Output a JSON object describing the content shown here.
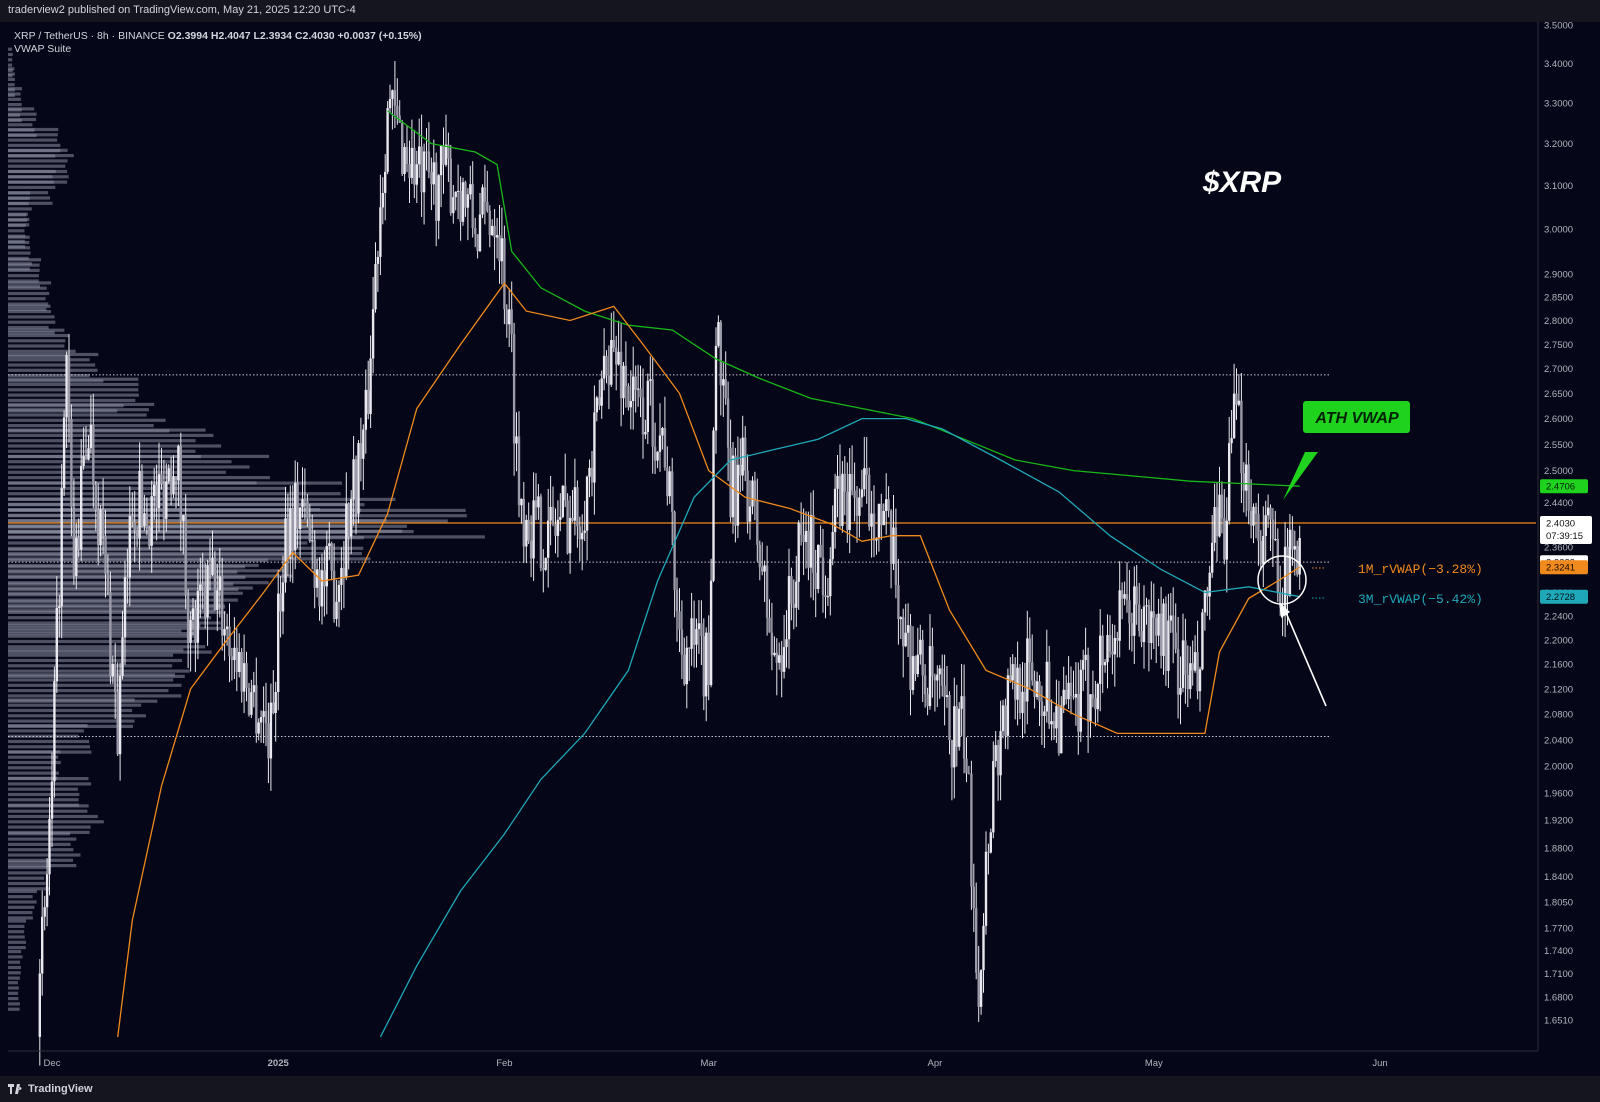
{
  "header": {
    "published": "traderview2 published on TradingView.com, May 21, 2025 12:20 UTC-4"
  },
  "legend": {
    "symbol": "XRP / TetherUS · 8h · BINANCE",
    "ohlc": "O2.3994  H2.4047  L2.3934  C2.4030  +0.0037 (+0.15%)",
    "indicator": "VWAP Suite"
  },
  "footer": {
    "brand": "TradingView"
  },
  "colors": {
    "background": "#050617",
    "candle": "#e8e8ee",
    "ath_vwap": "#18b818",
    "rvwap_1m": "#f08a1c",
    "rvwap_3m": "#1fa8b8",
    "poc_line": "#f08a1c",
    "ath_badge": "#1ed21e"
  },
  "chart_data": {
    "type": "line",
    "title": "$XRP",
    "y_scale": "log",
    "ylim": [
      1.64,
      3.51
    ],
    "y_ticks": [
      "3.5000",
      "3.4000",
      "3.3000",
      "3.2000",
      "3.1000",
      "3.0000",
      "2.9000",
      "2.8500",
      "2.8000",
      "2.7500",
      "2.7000",
      "2.6500",
      "2.6000",
      "2.5500",
      "2.5000",
      "2.4400",
      "2.4000",
      "2.3600",
      "2.3200",
      "2.2800",
      "2.2400",
      "2.2000",
      "2.1600",
      "2.1200",
      "2.0800",
      "2.0400",
      "2.0000",
      "1.9600",
      "1.9200",
      "1.8800",
      "1.8400",
      "1.8050",
      "1.7700",
      "1.7400",
      "1.7100",
      "1.6800",
      "1.6510"
    ],
    "x_ticks": [
      {
        "label": "Dec",
        "date": "2024-12-01"
      },
      {
        "label": "2025",
        "date": "2025-01-01"
      },
      {
        "label": "Feb",
        "date": "2025-02-01"
      },
      {
        "label": "Mar",
        "date": "2025-03-01"
      },
      {
        "label": "Apr",
        "date": "2025-04-01"
      },
      {
        "label": "May",
        "date": "2025-05-01"
      },
      {
        "label": "Jun",
        "date": "2025-06-01"
      }
    ],
    "xlim": [
      "2024-11-30",
      "2025-06-18"
    ],
    "price_path": [
      [
        "2024-11-29",
        1.63
      ],
      [
        "2024-12-01",
        1.95
      ],
      [
        "2024-12-03",
        2.68
      ],
      [
        "2024-12-04",
        2.3
      ],
      [
        "2024-12-06",
        2.6
      ],
      [
        "2024-12-08",
        2.35
      ],
      [
        "2024-12-10",
        2.05
      ],
      [
        "2024-12-12",
        2.45
      ],
      [
        "2024-12-14",
        2.42
      ],
      [
        "2024-12-16",
        2.46
      ],
      [
        "2024-12-18",
        2.55
      ],
      [
        "2024-12-20",
        2.2
      ],
      [
        "2024-12-23",
        2.3
      ],
      [
        "2024-12-26",
        2.18
      ],
      [
        "2024-12-29",
        2.1
      ],
      [
        "2024-12-31",
        2.05
      ],
      [
        "2025-01-02",
        2.4
      ],
      [
        "2025-01-04",
        2.44
      ],
      [
        "2025-01-07",
        2.3
      ],
      [
        "2025-01-09",
        2.3
      ],
      [
        "2025-01-11",
        2.45
      ],
      [
        "2025-01-13",
        2.58
      ],
      [
        "2025-01-15",
        3.08
      ],
      [
        "2025-01-16",
        3.3
      ],
      [
        "2025-01-18",
        3.2
      ],
      [
        "2025-01-21",
        3.1
      ],
      [
        "2025-01-24",
        3.12
      ],
      [
        "2025-01-26",
        3.1
      ],
      [
        "2025-01-28",
        3.0
      ],
      [
        "2025-01-31",
        3.05
      ],
      [
        "2025-02-02",
        2.72
      ],
      [
        "2025-02-03",
        2.45
      ],
      [
        "2025-02-05",
        2.4
      ],
      [
        "2025-02-07",
        2.38
      ],
      [
        "2025-02-09",
        2.42
      ],
      [
        "2025-02-11",
        2.42
      ],
      [
        "2025-02-13",
        2.5
      ],
      [
        "2025-02-15",
        2.75
      ],
      [
        "2025-02-17",
        2.7
      ],
      [
        "2025-02-19",
        2.62
      ],
      [
        "2025-02-21",
        2.62
      ],
      [
        "2025-02-23",
        2.55
      ],
      [
        "2025-02-25",
        2.2
      ],
      [
        "2025-02-27",
        2.18
      ],
      [
        "2025-03-01",
        2.15
      ],
      [
        "2025-03-02",
        2.8
      ],
      [
        "2025-03-04",
        2.45
      ],
      [
        "2025-03-06",
        2.5
      ],
      [
        "2025-03-08",
        2.35
      ],
      [
        "2025-03-10",
        2.15
      ],
      [
        "2025-03-12",
        2.25
      ],
      [
        "2025-03-14",
        2.38
      ],
      [
        "2025-03-17",
        2.32
      ],
      [
        "2025-03-19",
        2.45
      ],
      [
        "2025-03-21",
        2.45
      ],
      [
        "2025-03-24",
        2.44
      ],
      [
        "2025-03-26",
        2.35
      ],
      [
        "2025-03-28",
        2.2
      ],
      [
        "2025-03-30",
        2.15
      ],
      [
        "2025-04-01",
        2.12
      ],
      [
        "2025-04-03",
        2.05
      ],
      [
        "2025-04-05",
        2.05
      ],
      [
        "2025-04-07",
        1.7
      ],
      [
        "2025-04-09",
        2.0
      ],
      [
        "2025-04-11",
        2.1
      ],
      [
        "2025-04-13",
        2.15
      ],
      [
        "2025-04-16",
        2.12
      ],
      [
        "2025-04-18",
        2.08
      ],
      [
        "2025-04-20",
        2.08
      ],
      [
        "2025-04-22",
        2.12
      ],
      [
        "2025-04-25",
        2.2
      ],
      [
        "2025-04-28",
        2.25
      ],
      [
        "2025-04-30",
        2.22
      ],
      [
        "2025-05-02",
        2.22
      ],
      [
        "2025-05-05",
        2.15
      ],
      [
        "2025-05-07",
        2.12
      ],
      [
        "2025-05-09",
        2.35
      ],
      [
        "2025-05-11",
        2.42
      ],
      [
        "2025-05-12",
        2.6
      ],
      [
        "2025-05-13",
        2.55
      ],
      [
        "2025-05-15",
        2.4
      ],
      [
        "2025-05-17",
        2.37
      ],
      [
        "2025-05-19",
        2.3
      ],
      [
        "2025-05-20",
        2.34
      ],
      [
        "2025-05-21",
        2.403
      ]
    ],
    "series": [
      {
        "name": "ATH VWAP",
        "last_value": 2.4706,
        "points": [
          [
            "2025-01-16",
            3.28
          ],
          [
            "2025-01-22",
            3.2
          ],
          [
            "2025-01-28",
            3.18
          ],
          [
            "2025-01-31",
            3.15
          ],
          [
            "2025-02-02",
            2.95
          ],
          [
            "2025-02-06",
            2.87
          ],
          [
            "2025-02-12",
            2.82
          ],
          [
            "2025-02-18",
            2.79
          ],
          [
            "2025-02-24",
            2.78
          ],
          [
            "2025-03-02",
            2.72
          ],
          [
            "2025-03-08",
            2.68
          ],
          [
            "2025-03-15",
            2.64
          ],
          [
            "2025-03-22",
            2.62
          ],
          [
            "2025-03-29",
            2.6
          ],
          [
            "2025-04-05",
            2.56
          ],
          [
            "2025-04-12",
            2.52
          ],
          [
            "2025-04-20",
            2.5
          ],
          [
            "2025-04-28",
            2.49
          ],
          [
            "2025-05-06",
            2.48
          ],
          [
            "2025-05-14",
            2.475
          ],
          [
            "2025-05-21",
            2.4706
          ]
        ]
      },
      {
        "name": "1M_rVWAP(−3.28%)",
        "last_value": 2.3241,
        "points": [
          [
            "2024-12-10",
            1.63
          ],
          [
            "2024-12-12",
            1.78
          ],
          [
            "2024-12-16",
            1.97
          ],
          [
            "2024-12-20",
            2.12
          ],
          [
            "2024-12-25",
            2.2
          ],
          [
            "2024-12-30",
            2.28
          ],
          [
            "2025-01-03",
            2.35
          ],
          [
            "2025-01-07",
            2.3
          ],
          [
            "2025-01-12",
            2.31
          ],
          [
            "2025-01-16",
            2.42
          ],
          [
            "2025-01-20",
            2.62
          ],
          [
            "2025-01-26",
            2.75
          ],
          [
            "2025-02-01",
            2.88
          ],
          [
            "2025-02-04",
            2.82
          ],
          [
            "2025-02-10",
            2.8
          ],
          [
            "2025-02-16",
            2.83
          ],
          [
            "2025-02-20",
            2.75
          ],
          [
            "2025-02-25",
            2.65
          ],
          [
            "2025-03-01",
            2.5
          ],
          [
            "2025-03-06",
            2.45
          ],
          [
            "2025-03-12",
            2.43
          ],
          [
            "2025-03-18",
            2.4
          ],
          [
            "2025-03-22",
            2.37
          ],
          [
            "2025-03-26",
            2.38
          ],
          [
            "2025-03-30",
            2.38
          ],
          [
            "2025-04-03",
            2.25
          ],
          [
            "2025-04-08",
            2.15
          ],
          [
            "2025-04-14",
            2.12
          ],
          [
            "2025-04-20",
            2.08
          ],
          [
            "2025-04-26",
            2.05
          ],
          [
            "2025-05-02",
            2.05
          ],
          [
            "2025-05-08",
            2.05
          ],
          [
            "2025-05-10",
            2.18
          ],
          [
            "2025-05-14",
            2.27
          ],
          [
            "2025-05-18",
            2.3
          ],
          [
            "2025-05-21",
            2.3241
          ]
        ]
      },
      {
        "name": "3M_rVWAP(−5.42%)",
        "last_value": 2.2728,
        "points": [
          [
            "2025-01-15",
            1.63
          ],
          [
            "2025-01-20",
            1.72
          ],
          [
            "2025-01-26",
            1.82
          ],
          [
            "2025-02-01",
            1.9
          ],
          [
            "2025-02-06",
            1.98
          ],
          [
            "2025-02-12",
            2.05
          ],
          [
            "2025-02-18",
            2.15
          ],
          [
            "2025-02-22",
            2.3
          ],
          [
            "2025-02-27",
            2.45
          ],
          [
            "2025-03-04",
            2.52
          ],
          [
            "2025-03-10",
            2.54
          ],
          [
            "2025-03-16",
            2.56
          ],
          [
            "2025-03-22",
            2.6
          ],
          [
            "2025-03-28",
            2.6
          ],
          [
            "2025-04-02",
            2.58
          ],
          [
            "2025-04-10",
            2.52
          ],
          [
            "2025-04-18",
            2.46
          ],
          [
            "2025-04-25",
            2.38
          ],
          [
            "2025-05-02",
            2.32
          ],
          [
            "2025-05-08",
            2.28
          ],
          [
            "2025-05-14",
            2.29
          ],
          [
            "2025-05-21",
            2.2728
          ]
        ]
      }
    ],
    "horizontal_levels": [
      {
        "price": 2.403,
        "style": "solid",
        "label": "2.4030",
        "countdown": "07:39:15"
      },
      {
        "price": 2.6873,
        "style": "dotted"
      },
      {
        "price": 2.3329,
        "style": "dotted",
        "label": "2.3329"
      },
      {
        "price": 2.0452,
        "style": "dotted"
      }
    ],
    "price_labels": [
      {
        "value": "2.4706",
        "color": "#1ed21e"
      },
      {
        "value": "2.3241",
        "color": "#f08a1c"
      },
      {
        "value": "2.2728",
        "color": "#1fa8b8"
      }
    ],
    "annotations": [
      {
        "text": "$XRP"
      },
      {
        "text": "ATH VWAP"
      },
      {
        "text": "1M_rVWAP(−3.28%)"
      },
      {
        "text": "3M_rVWAP(−5.42%)"
      }
    ],
    "volume_profile": {
      "side": "left",
      "poc_price": 2.403,
      "bins": [
        [
          3.4,
          2
        ],
        [
          3.35,
          3
        ],
        [
          3.3,
          6
        ],
        [
          3.25,
          12
        ],
        [
          3.2,
          22
        ],
        [
          3.15,
          28
        ],
        [
          3.1,
          20
        ],
        [
          3.05,
          10
        ],
        [
          3.0,
          8
        ],
        [
          2.95,
          10
        ],
        [
          2.9,
          14
        ],
        [
          2.85,
          18
        ],
        [
          2.8,
          20
        ],
        [
          2.75,
          28
        ],
        [
          2.7,
          40
        ],
        [
          2.65,
          55
        ],
        [
          2.6,
          70
        ],
        [
          2.55,
          90
        ],
        [
          2.5,
          110
        ],
        [
          2.45,
          140
        ],
        [
          2.42,
          170
        ],
        [
          2.4,
          200
        ],
        [
          2.37,
          150
        ],
        [
          2.33,
          120
        ],
        [
          2.3,
          110
        ],
        [
          2.27,
          100
        ],
        [
          2.24,
          90
        ],
        [
          2.2,
          85
        ],
        [
          2.16,
          80
        ],
        [
          2.12,
          75
        ],
        [
          2.08,
          60
        ],
        [
          2.04,
          35
        ],
        [
          2.0,
          22
        ],
        [
          1.96,
          35
        ],
        [
          1.92,
          40
        ],
        [
          1.88,
          30
        ],
        [
          1.84,
          18
        ],
        [
          1.8,
          12
        ],
        [
          1.76,
          8
        ],
        [
          1.72,
          6
        ],
        [
          1.68,
          5
        ]
      ]
    }
  }
}
